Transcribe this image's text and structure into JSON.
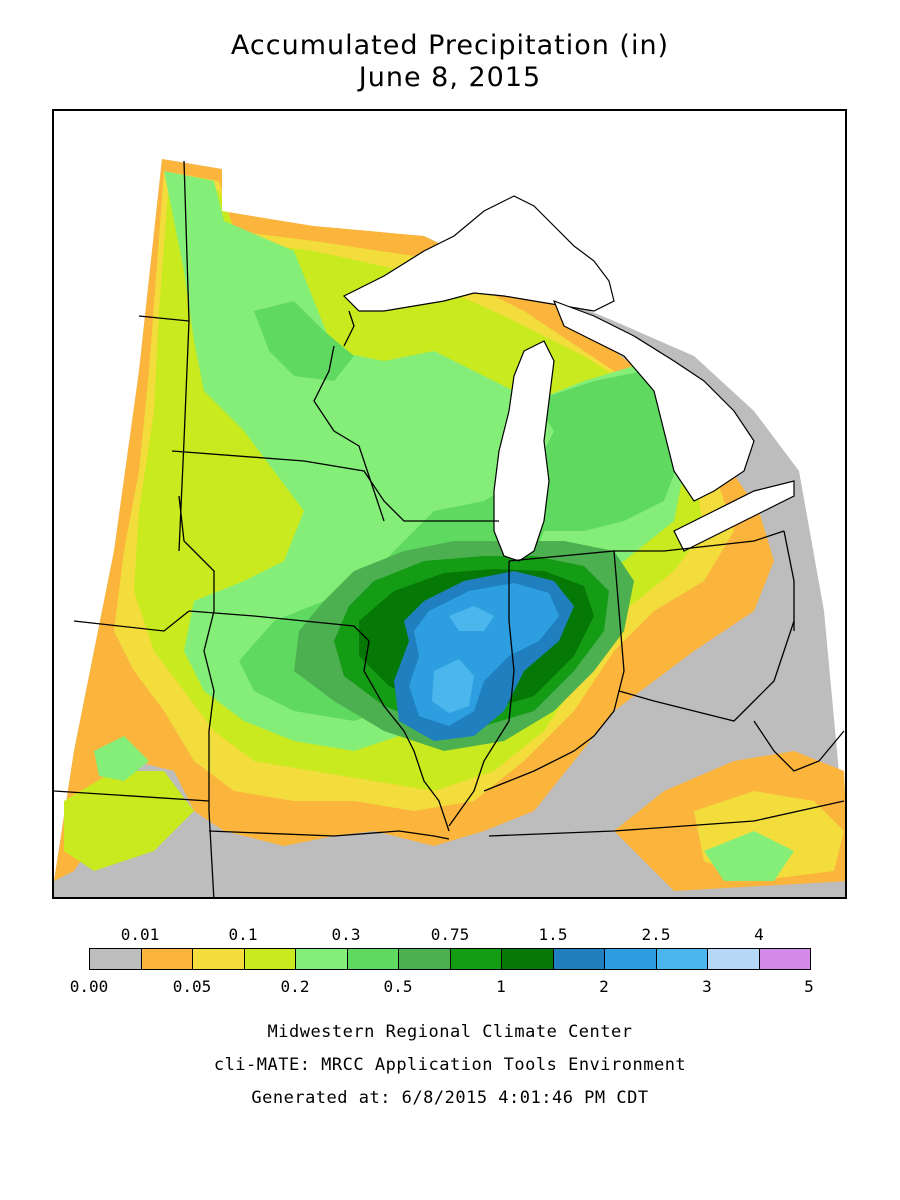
{
  "title": {
    "line1": "Accumulated Precipitation (in)",
    "line2": "June 8, 2015"
  },
  "legend": {
    "upper_labels": [
      "0.01",
      "0.1",
      "0.3",
      "0.75",
      "1.5",
      "2.5",
      "4"
    ],
    "lower_labels": [
      "0.00",
      "0.05",
      "0.2",
      "0.5",
      "1",
      "2",
      "3",
      "5"
    ],
    "bins": [
      {
        "range": "0.00-0.01",
        "color": "#bdbdbd"
      },
      {
        "range": "0.01-0.05",
        "color": "#fbb43c"
      },
      {
        "range": "0.05-0.1",
        "color": "#f2dd3c"
      },
      {
        "range": "0.1-0.2",
        "color": "#c8ea1e"
      },
      {
        "range": "0.2-0.3",
        "color": "#84ee78"
      },
      {
        "range": "0.3-0.5",
        "color": "#5fd95f"
      },
      {
        "range": "0.5-0.75",
        "color": "#4caf50"
      },
      {
        "range": "0.75-1",
        "color": "#149c14"
      },
      {
        "range": "1-1.5",
        "color": "#067806"
      },
      {
        "range": "1.5-2",
        "color": "#1f7fbf"
      },
      {
        "range": "2-2.5",
        "color": "#2d9fe0"
      },
      {
        "range": "2.5-3",
        "color": "#4ab6ec"
      },
      {
        "range": "3-4",
        "color": "#b4d8f6"
      },
      {
        "range": "4-5",
        "color": "#d38ae8"
      }
    ]
  },
  "footer": {
    "line1": "Midwestern Regional Climate Center",
    "line2": "cli-MATE: MRCC Application Tools Environment",
    "line3": "Generated at: 6/8/2015 4:01:46 PM CDT"
  },
  "map": {
    "region": "Midwest United States",
    "water_color": "#ffffff",
    "boundary_color": "#000000"
  }
}
